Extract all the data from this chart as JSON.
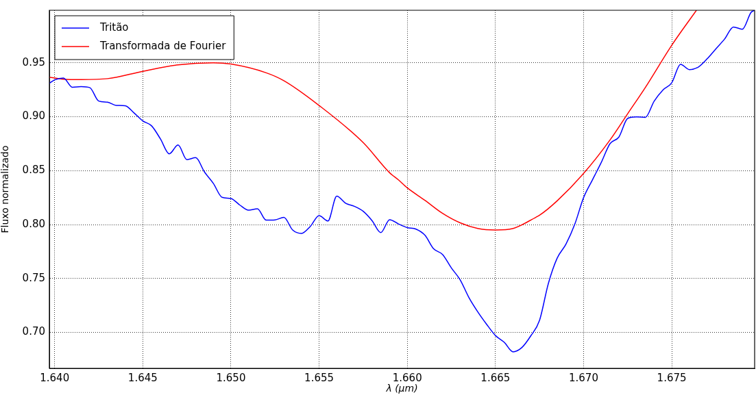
{
  "chart_data": {
    "type": "line",
    "xlabel": "λ (μm)",
    "ylabel": "Fluxo normalizado",
    "xlim": [
      1.6397,
      1.6797
    ],
    "ylim": [
      0.6667,
      0.9987
    ],
    "xticks": [
      {
        "value": 1.64,
        "label": "1.640"
      },
      {
        "value": 1.645,
        "label": "1.645"
      },
      {
        "value": 1.65,
        "label": "1.650"
      },
      {
        "value": 1.655,
        "label": "1.655"
      },
      {
        "value": 1.66,
        "label": "1.660"
      },
      {
        "value": 1.665,
        "label": "1.665"
      },
      {
        "value": 1.67,
        "label": "1.670"
      },
      {
        "value": 1.675,
        "label": "1.675"
      }
    ],
    "yticks": [
      {
        "value": 0.7,
        "label": "0.70"
      },
      {
        "value": 0.75,
        "label": "0.75"
      },
      {
        "value": 0.8,
        "label": "0.80"
      },
      {
        "value": 0.85,
        "label": "0.85"
      },
      {
        "value": 0.9,
        "label": "0.90"
      },
      {
        "value": 0.95,
        "label": "0.95"
      }
    ],
    "grid": true,
    "legend": "top left",
    "line_style": "solid",
    "marker": "none",
    "series": [
      {
        "name": "Tritão",
        "color": "#0000ff",
        "x": [
          1.6397,
          1.64,
          1.6405,
          1.641,
          1.6415,
          1.642,
          1.6425,
          1.643,
          1.6435,
          1.644,
          1.6445,
          1.645,
          1.6455,
          1.646,
          1.6465,
          1.647,
          1.6475,
          1.648,
          1.6485,
          1.649,
          1.6495,
          1.65,
          1.6505,
          1.651,
          1.6515,
          1.652,
          1.6525,
          1.653,
          1.6535,
          1.654,
          1.6545,
          1.655,
          1.6555,
          1.656,
          1.6565,
          1.657,
          1.6575,
          1.658,
          1.6585,
          1.659,
          1.6595,
          1.66,
          1.6605,
          1.661,
          1.6615,
          1.662,
          1.6625,
          1.663,
          1.6635,
          1.664,
          1.6645,
          1.665,
          1.6655,
          1.666,
          1.6665,
          1.667,
          1.6675,
          1.668,
          1.6685,
          1.669,
          1.6695,
          1.67,
          1.6705,
          1.671,
          1.6715,
          1.672,
          1.6725,
          1.673,
          1.6735,
          1.674,
          1.6745,
          1.675,
          1.6755,
          1.676,
          1.6765,
          1.677,
          1.6775,
          1.678,
          1.6785,
          1.679,
          1.6795,
          1.6797
        ],
        "values": [
          0.931,
          0.9342,
          0.9359,
          0.9273,
          0.9279,
          0.9269,
          0.9145,
          0.9135,
          0.9105,
          0.9102,
          0.9036,
          0.8961,
          0.8915,
          0.8794,
          0.8656,
          0.8738,
          0.8602,
          0.862,
          0.8487,
          0.8382,
          0.8252,
          0.8242,
          0.8181,
          0.8133,
          0.8146,
          0.8041,
          0.8043,
          0.8067,
          0.7949,
          0.7918,
          0.7983,
          0.8083,
          0.8033,
          0.8263,
          0.8198,
          0.8169,
          0.8123,
          0.8037,
          0.7926,
          0.8045,
          0.8006,
          0.7972,
          0.7957,
          0.7901,
          0.7774,
          0.7723,
          0.7598,
          0.7487,
          0.7322,
          0.719,
          0.7075,
          0.6971,
          0.6908,
          0.682,
          0.686,
          0.6967,
          0.7111,
          0.7453,
          0.7688,
          0.7818,
          0.8003,
          0.825,
          0.8414,
          0.8575,
          0.8751,
          0.8811,
          0.8984,
          0.8998,
          0.8994,
          0.9144,
          0.9248,
          0.9315,
          0.9486,
          0.9437,
          0.946,
          0.9536,
          0.9629,
          0.9721,
          0.9832,
          0.9811,
          0.9968,
          0.9987
        ]
      },
      {
        "name": "Transformada de Fourier",
        "color": "#ff0000",
        "x": [
          1.6397,
          1.6405,
          1.6415,
          1.643,
          1.645,
          1.647,
          1.649,
          1.65,
          1.652,
          1.653,
          1.655,
          1.6575,
          1.659,
          1.6595,
          1.66,
          1.661,
          1.662,
          1.663,
          1.664,
          1.665,
          1.666,
          1.6673,
          1.6675,
          1.6685,
          1.67,
          1.6715,
          1.6725,
          1.6735,
          1.675,
          1.6764
        ],
        "values": [
          0.9367,
          0.9348,
          0.9344,
          0.9353,
          0.9421,
          0.948,
          0.95,
          0.9488,
          0.9407,
          0.9334,
          0.9104,
          0.876,
          0.848,
          0.8414,
          0.834,
          0.8225,
          0.8104,
          0.8016,
          0.7964,
          0.795,
          0.7964,
          0.8068,
          0.8086,
          0.822,
          0.8474,
          0.8785,
          0.9028,
          0.9271,
          0.9663,
          0.9987
        ]
      }
    ]
  }
}
